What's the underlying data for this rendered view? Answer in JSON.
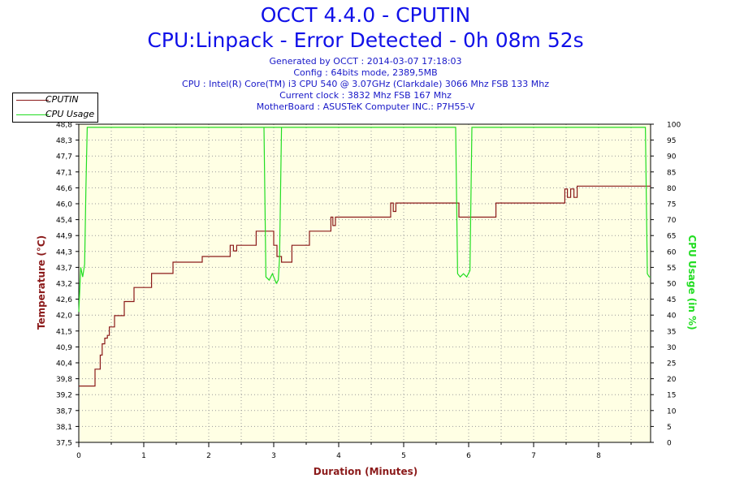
{
  "header": {
    "title": "OCCT 4.4.0 - CPUTIN",
    "subtitle": "CPU:Linpack - Error Detected - 0h 08m 52s",
    "info_lines": [
      "Generated by OCCT : 2014-03-07 17:18:03",
      "Config : 64bits mode, 2389,5MB",
      "CPU : Intel(R) Core(TM) i3 CPU 540 @ 3.07GHz (Clarkdale) 3066 Mhz FSB 133 Mhz",
      "Current clock : 3832 Mhz FSB 167 Mhz",
      "MotherBoard : ASUSTeK Computer INC.: P7H55-V"
    ]
  },
  "legend": {
    "items": [
      {
        "label": "CPUTIN",
        "color": "#8b1a1a"
      },
      {
        "label": "CPU Usage",
        "color": "#22dd22"
      }
    ]
  },
  "chart_data": {
    "type": "line",
    "xlabel": "Duration (Minutes)",
    "ylabel": "Temperature (°C)",
    "y2label": "CPU Usage (in %)",
    "xlim": [
      0,
      8.8
    ],
    "ylim": [
      37.5,
      48.8
    ],
    "y2lim": [
      0,
      100
    ],
    "x_ticks": [
      "0",
      "1",
      "2",
      "3",
      "4",
      "5",
      "6",
      "7",
      "8"
    ],
    "y_ticks": [
      "37,5",
      "38,1",
      "38,7",
      "39,2",
      "39,8",
      "40,4",
      "40,9",
      "41,5",
      "42,0",
      "42,6",
      "43,2",
      "43,7",
      "44,3",
      "44,9",
      "45,4",
      "46,0",
      "46,6",
      "47,1",
      "47,7",
      "48,3",
      "48,8"
    ],
    "y2_ticks": [
      "0",
      "5",
      "10",
      "15",
      "20",
      "25",
      "30",
      "35",
      "40",
      "45",
      "50",
      "55",
      "60",
      "65",
      "70",
      "75",
      "80",
      "85",
      "90",
      "95",
      "100"
    ],
    "grid": true,
    "colors": {
      "temperature": "#8b1a1a",
      "usage": "#22dd22",
      "xlabel": "#8b1a1a",
      "ylabel": "#8b1a1a",
      "y2label": "#22dd22"
    },
    "series": [
      {
        "name": "CPUTIN",
        "axis": "left",
        "step": true,
        "x": [
          0,
          0.25,
          0.33,
          0.36,
          0.4,
          0.44,
          0.47,
          0.55,
          0.7,
          0.85,
          1.12,
          1.45,
          1.9,
          2.33,
          2.38,
          2.43,
          2.73,
          2.88,
          3.0,
          3.05,
          3.12,
          3.28,
          3.55,
          3.88,
          3.91,
          3.95,
          4.1,
          4.8,
          4.84,
          4.88,
          5.85,
          6.42,
          7.48,
          7.52,
          7.57,
          7.62,
          7.67,
          8.8
        ],
        "y": [
          39.5,
          40.1,
          40.6,
          41.0,
          41.2,
          41.3,
          41.6,
          42.0,
          42.5,
          43.0,
          43.5,
          43.9,
          44.1,
          44.5,
          44.3,
          44.5,
          45.0,
          45.0,
          44.5,
          44.1,
          43.9,
          44.5,
          45.0,
          45.5,
          45.2,
          45.5,
          45.5,
          46.0,
          45.7,
          46.0,
          45.5,
          46.0,
          46.5,
          46.2,
          46.5,
          46.2,
          46.6,
          46.6
        ]
      },
      {
        "name": "CPU Usage",
        "axis": "right",
        "step": false,
        "x": [
          0,
          0.03,
          0.06,
          0.09,
          0.11,
          0.13,
          3.15,
          2.85,
          2.88,
          2.93,
          2.98,
          3.04,
          3.07,
          3.09,
          3.12,
          5.8,
          5.83,
          5.87,
          5.92,
          5.97,
          6.02,
          6.05,
          8.72,
          8.75,
          8.78,
          8.8
        ],
        "y": [
          41,
          55,
          52,
          56,
          80,
          99,
          99,
          99,
          52,
          51,
          53,
          50,
          51,
          58,
          99,
          99,
          53,
          52,
          53,
          52,
          54,
          99,
          99,
          53,
          52,
          52
        ]
      }
    ]
  }
}
